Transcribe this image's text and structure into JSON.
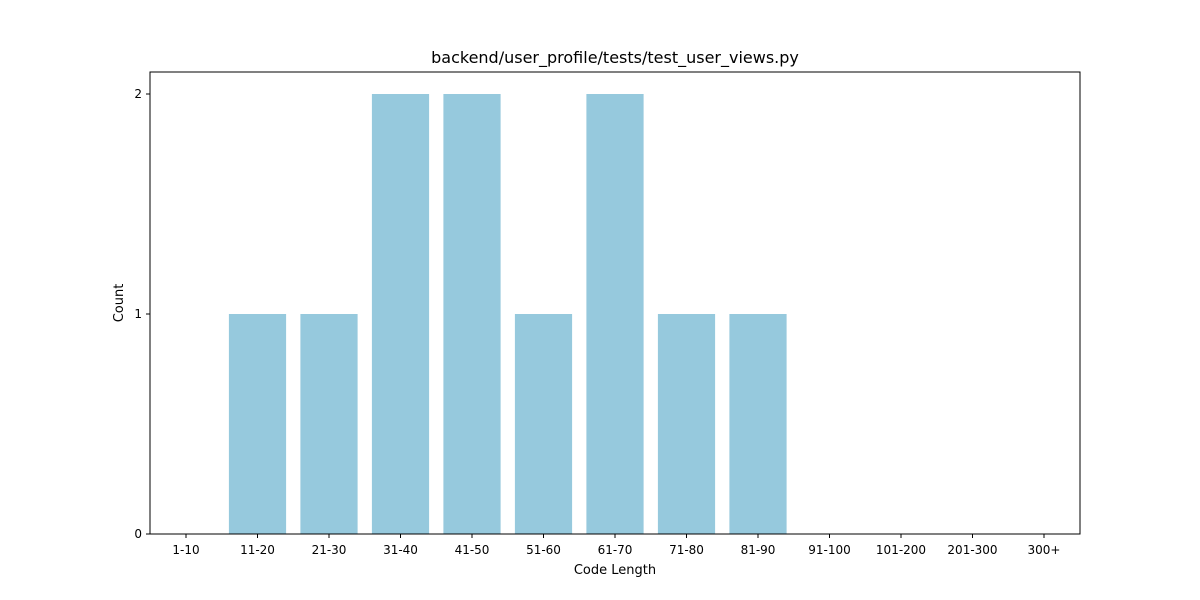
{
  "chart_data": {
    "type": "bar",
    "title": "backend/user_profile/tests/test_user_views.py",
    "xlabel": "Code Length",
    "ylabel": "Count",
    "categories": [
      "1-10",
      "11-20",
      "21-30",
      "31-40",
      "41-50",
      "51-60",
      "61-70",
      "71-80",
      "81-90",
      "91-100",
      "101-200",
      "201-300",
      "300+"
    ],
    "values": [
      0,
      1,
      1,
      2,
      2,
      1,
      2,
      1,
      1,
      0,
      0,
      0,
      0
    ],
    "ylim": [
      0,
      2.1
    ],
    "yticks": [
      0,
      1,
      2
    ],
    "grid": false,
    "bar_color": "#96c9dd"
  }
}
